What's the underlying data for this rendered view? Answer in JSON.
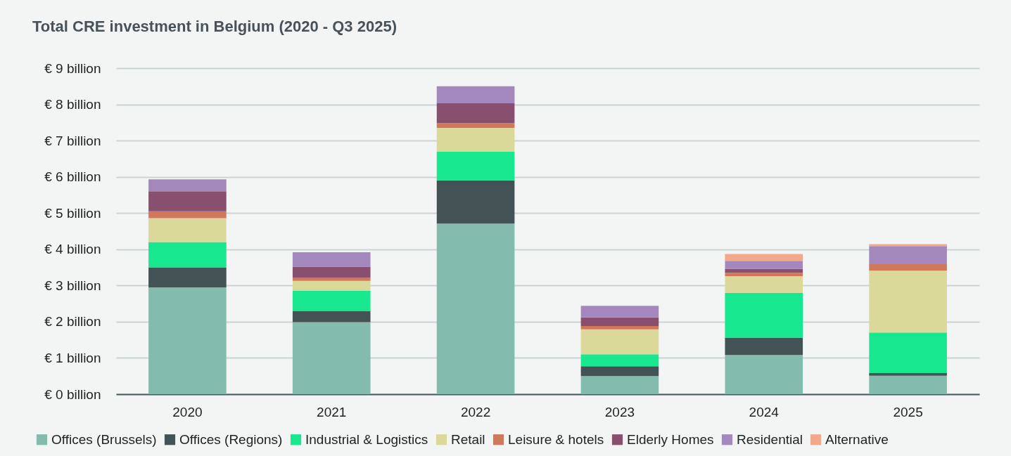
{
  "chart_data": {
    "type": "bar",
    "title": "Total CRE investment in Belgium (2020 - Q3 2025)",
    "stacked": true,
    "categories": [
      "2020",
      "2021",
      "2022",
      "2023",
      "2024",
      "2025"
    ],
    "series": [
      {
        "name": "Offices (Brussels)",
        "color": "#83bbad",
        "values": [
          2.95,
          1.99,
          4.71,
          0.5,
          1.08,
          0.51
        ]
      },
      {
        "name": "Offices (Regions)",
        "color": "#435254",
        "values": [
          0.55,
          0.31,
          1.19,
          0.27,
          0.48,
          0.07
        ]
      },
      {
        "name": "Industrial & Logistics",
        "color": "#17e88f",
        "values": [
          0.7,
          0.55,
          0.79,
          0.33,
          1.24,
          1.12
        ]
      },
      {
        "name": "Retail",
        "color": "#dbd99a",
        "values": [
          0.66,
          0.28,
          0.66,
          0.69,
          0.46,
          1.71
        ]
      },
      {
        "name": "Leisure & hotels",
        "color": "#d2785a",
        "values": [
          0.19,
          0.09,
          0.13,
          0.09,
          0.09,
          0.18
        ]
      },
      {
        "name": "Elderly Homes",
        "color": "#884f6f",
        "values": [
          0.55,
          0.3,
          0.55,
          0.24,
          0.11,
          0
        ]
      },
      {
        "name": "Residential",
        "color": "#a388bd",
        "values": [
          0.33,
          0.4,
          0.47,
          0.32,
          0.22,
          0.5
        ]
      },
      {
        "name": "Alternative",
        "color": "#f2a88a",
        "values": [
          0,
          0,
          0,
          0,
          0.19,
          0.05
        ]
      }
    ],
    "ylim": [
      0,
      9
    ],
    "yticks": [
      {
        "value": 0,
        "label": "€ 0 billion"
      },
      {
        "value": 1,
        "label": "€ 1 billion"
      },
      {
        "value": 2,
        "label": "€ 2 billion"
      },
      {
        "value": 3,
        "label": "€ 3 billion"
      },
      {
        "value": 4,
        "label": "€ 4 billion"
      },
      {
        "value": 5,
        "label": "€ 5 billion"
      },
      {
        "value": 6,
        "label": "€ 6 billion"
      },
      {
        "value": 7,
        "label": "€ 7 billion"
      },
      {
        "value": 8,
        "label": "€ 8 billion"
      },
      {
        "value": 9,
        "label": "€ 9 billion"
      }
    ],
    "grid": "y",
    "legend": "bottom"
  }
}
